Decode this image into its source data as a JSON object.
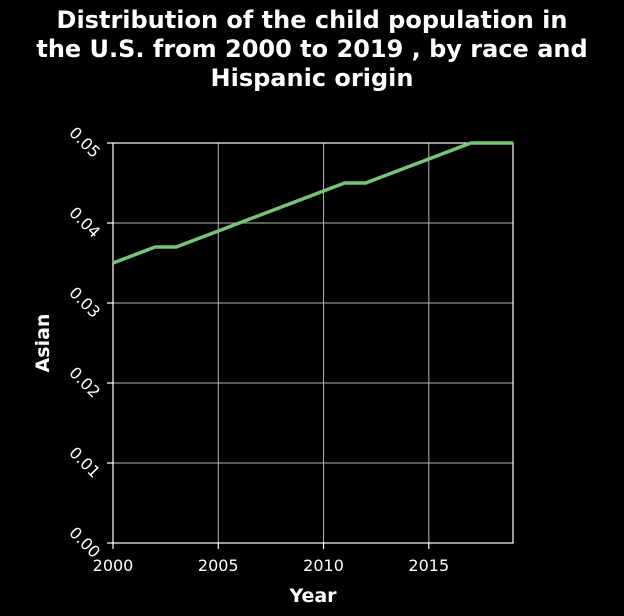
{
  "chart_data": {
    "type": "line",
    "title": "Distribution of the child population in\nthe U.S. from 2000 to 2019 , by race and\nHispanic origin",
    "xlabel": "Year",
    "ylabel": "Asian",
    "xlim": [
      2000,
      2019
    ],
    "ylim": [
      0.0,
      0.05
    ],
    "x_ticks": [
      2000,
      2005,
      2010,
      2015
    ],
    "x_tick_labels": [
      "2000",
      "2005",
      "2010",
      "2015"
    ],
    "y_ticks": [
      0.0,
      0.01,
      0.02,
      0.03,
      0.04,
      0.05
    ],
    "y_tick_labels": [
      "0.00",
      "0.01",
      "0.02",
      "0.03",
      "0.04",
      "0.05"
    ],
    "grid": true,
    "legend": "none",
    "series": [
      {
        "color": "#77c479",
        "x": [
          2000,
          2001,
          2002,
          2003,
          2004,
          2005,
          2006,
          2007,
          2008,
          2009,
          2010,
          2011,
          2012,
          2013,
          2014,
          2015,
          2016,
          2017,
          2018,
          2019
        ],
        "values": [
          0.035,
          0.036,
          0.037,
          0.037,
          0.038,
          0.039,
          0.04,
          0.041,
          0.042,
          0.043,
          0.044,
          0.045,
          0.045,
          0.046,
          0.047,
          0.048,
          0.049,
          0.05,
          0.05,
          0.05
        ]
      }
    ],
    "colors": {
      "background": "#000000",
      "text": "#ffffff",
      "grid": "#b3b3b3",
      "axis": "#ffffff"
    }
  }
}
